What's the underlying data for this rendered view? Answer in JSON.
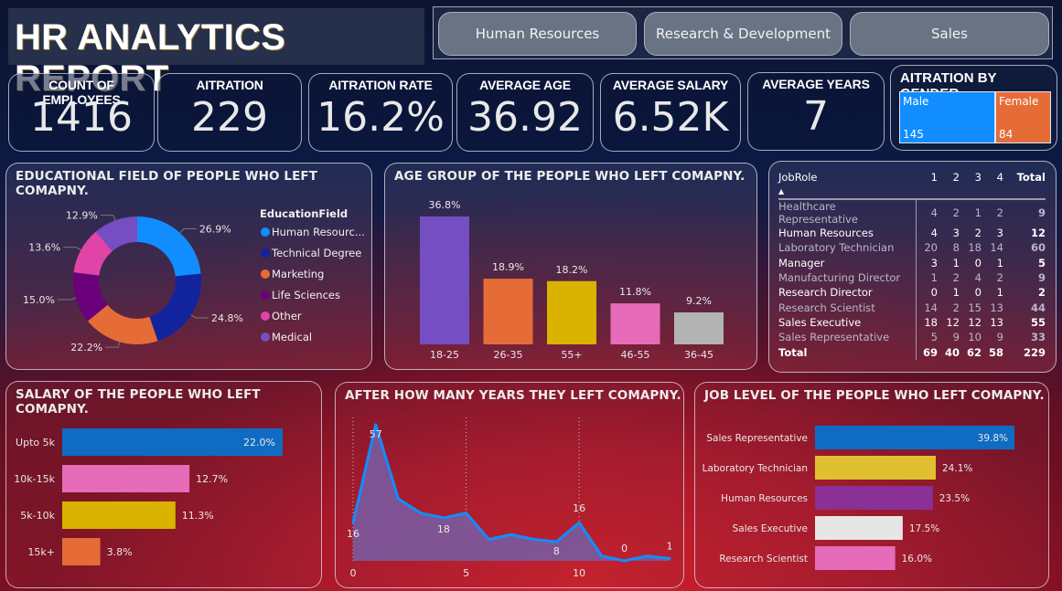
{
  "header": {
    "title": "HR ANALYTICS REPORT",
    "department_slicer": [
      "Human Resources",
      "Research & Development",
      "Sales"
    ]
  },
  "kpis": [
    {
      "label": "COUNT OF EMPLOYEES",
      "value": "1416"
    },
    {
      "label": "AITRATION",
      "value": "229"
    },
    {
      "label": "AITRATION RATE",
      "value": "16.2%"
    },
    {
      "label": "AVERAGE AGE",
      "value": "36.92"
    },
    {
      "label": "AVERAGE SALARY",
      "value": "6.52K"
    },
    {
      "label": "AVERAGE YEARS",
      "value": "7"
    }
  ],
  "gender": {
    "title": "AITRATION BY GENDER",
    "items": [
      {
        "name": "Male",
        "value": "145",
        "color": "#118DFF"
      },
      {
        "name": "Female",
        "value": "84",
        "color": "#E66C37"
      }
    ]
  },
  "matrix": {
    "header": [
      "JobRole",
      "1",
      "2",
      "3",
      "4",
      "Total"
    ],
    "rows": [
      {
        "role": "Healthcare Representative",
        "v": [
          "4",
          "2",
          "1",
          "2"
        ],
        "total": "9"
      },
      {
        "role": "Human Resources",
        "v": [
          "4",
          "3",
          "2",
          "3"
        ],
        "total": "12"
      },
      {
        "role": "Laboratory Technician",
        "v": [
          "20",
          "8",
          "18",
          "14"
        ],
        "total": "60"
      },
      {
        "role": "Manager",
        "v": [
          "3",
          "1",
          "0",
          "1"
        ],
        "total": "5"
      },
      {
        "role": "Manufacturing Director",
        "v": [
          "1",
          "2",
          "4",
          "2"
        ],
        "total": "9"
      },
      {
        "role": "Research Director",
        "v": [
          "0",
          "1",
          "0",
          "1"
        ],
        "total": "2"
      },
      {
        "role": "Research Scientist",
        "v": [
          "14",
          "2",
          "15",
          "13"
        ],
        "total": "44"
      },
      {
        "role": "Sales Executive",
        "v": [
          "18",
          "12",
          "12",
          "13"
        ],
        "total": "55"
      },
      {
        "role": "Sales Representative",
        "v": [
          "5",
          "9",
          "10",
          "9"
        ],
        "total": "33"
      }
    ],
    "total_row": {
      "role": "Total",
      "v": [
        "69",
        "40",
        "62",
        "58"
      ],
      "total": "229"
    }
  },
  "chart_data": [
    {
      "id": "education",
      "type": "pie",
      "title": "EDUCATIONAL FIELD OF PEOPLE WHO LEFT COMAPNY.",
      "legend_title": "EducationField",
      "legend_position": "right",
      "categories": [
        "Human Resources",
        "Technical Degree",
        "Marketing",
        "Life Sciences",
        "Other",
        "Medical"
      ],
      "legend_labels": [
        "Human Resourc...",
        "Technical Degree",
        "Marketing",
        "Life Sciences",
        "Other",
        "Medical"
      ],
      "values": [
        26.9,
        24.8,
        22.2,
        15.0,
        13.6,
        12.9
      ],
      "labels": [
        "26.9%",
        "24.8%",
        "22.2%",
        "15.0%",
        "13.6%",
        "12.9%"
      ],
      "colors": [
        "#118DFF",
        "#12239E",
        "#E66C37",
        "#6B007B",
        "#E044A7",
        "#744EC2"
      ]
    },
    {
      "id": "age",
      "type": "bar",
      "title": "AGE GROUP OF THE PEOPLE WHO LEFT COMAPNY.",
      "categories": [
        "18-25",
        "26-35",
        "55+",
        "46-55",
        "36-45"
      ],
      "values": [
        36.8,
        18.9,
        18.2,
        11.8,
        9.2
      ],
      "labels": [
        "36.8%",
        "18.9%",
        "18.2%",
        "11.8%",
        "9.2%"
      ],
      "colors": [
        "#744EC2",
        "#E66C37",
        "#D9B300",
        "#E66BB8",
        "#B3B3B3"
      ],
      "ylim": [
        0,
        40
      ]
    },
    {
      "id": "salary",
      "type": "bar",
      "orientation": "horizontal",
      "title": "SALARY OF THE PEOPLE WHO LEFT COMAPNY.",
      "categories": [
        "Upto 5k",
        "10k-15k",
        "5k-10k",
        "15k+"
      ],
      "values": [
        22.0,
        12.7,
        11.3,
        3.8
      ],
      "labels": [
        "22.0%",
        "12.7%",
        "11.3%",
        "3.8%"
      ],
      "colors": [
        "#0F6CC2",
        "#E66BB8",
        "#D9B300",
        "#E66C37"
      ],
      "xlim": [
        0,
        24
      ]
    },
    {
      "id": "years",
      "type": "area",
      "title": "AFTER HOW MANY YEARS THEY LEFT COMAPNY.",
      "x": [
        0,
        1,
        2,
        3,
        4,
        5,
        6,
        7,
        8,
        9,
        10,
        11,
        12,
        13,
        14
      ],
      "values": [
        16,
        57,
        26,
        20,
        18,
        20,
        9,
        11,
        9,
        8,
        16,
        2,
        0,
        2,
        1
      ],
      "data_labels": {
        "0": "16",
        "1": "57",
        "4": "18",
        "9": "8",
        "10": "16",
        "12": "0",
        "14": "1"
      },
      "x_ticks": [
        0,
        5,
        10
      ],
      "ylim": [
        0,
        60
      ],
      "line_color": "#118DFF",
      "fill_color": "#7A5A9E"
    },
    {
      "id": "joblevel",
      "type": "bar",
      "orientation": "horizontal",
      "title": "JOB LEVEL OF THE PEOPLE WHO LEFT COMAPNY.",
      "categories": [
        "Sales Representative",
        "Laboratory Technician",
        "Human Resources",
        "Sales Executive",
        "Research Scientist"
      ],
      "values": [
        39.8,
        24.1,
        23.5,
        17.5,
        16.0
      ],
      "labels": [
        "39.8%",
        "24.1%",
        "23.5%",
        "17.5%",
        "16.0%"
      ],
      "colors": [
        "#0F6CC2",
        "#E0C030",
        "#8A3096",
        "#E6E6E6",
        "#E66BB8"
      ],
      "xlim": [
        0,
        40
      ]
    }
  ]
}
